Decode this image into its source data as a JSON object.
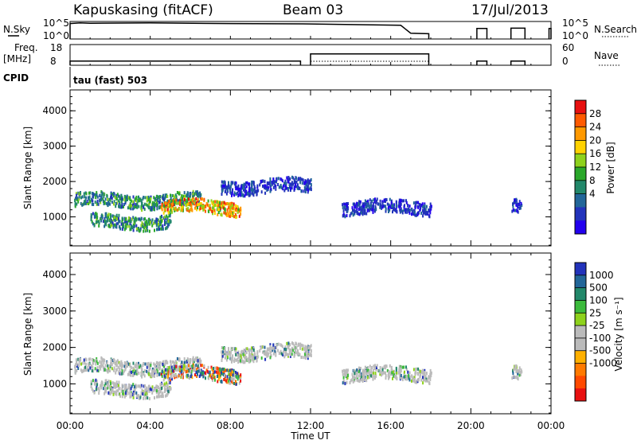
{
  "header": {
    "station": "Kapuskasing (fitACF)",
    "beam": "Beam 03",
    "date": "17/Jul/2013"
  },
  "side_labels": {
    "nsky": "N.Sky",
    "nsearch": "N.Search",
    "freq": "Freq.",
    "freq_unit": "[MHz]",
    "nave": "Nave",
    "cpid": "CPID",
    "cpid_value": "tau (fast) 503"
  },
  "strip_ticks": {
    "noise_left": [
      "10^5",
      "10^0"
    ],
    "noise_right": [
      "10^5",
      "10^0"
    ],
    "freq_left": [
      "18",
      "8"
    ],
    "nave_right": [
      "60",
      "0"
    ]
  },
  "chart_data": [
    {
      "type": "heatmap",
      "title": "",
      "quantity": "Power",
      "colorbar_label": "Power [dB]",
      "colorbar_ticks": [
        "28",
        "24",
        "20",
        "16",
        "12",
        "8",
        "4"
      ],
      "colorbar_colors": [
        "#e81010",
        "#ff5a00",
        "#ff9900",
        "#ffd200",
        "#8ed21c",
        "#2aa82a",
        "#22886a",
        "#226699",
        "#2233bb",
        "#2200ee"
      ],
      "xlabel": "Time UT",
      "ylabel": "Slant Range [km]",
      "x_ticks": [
        "00:00",
        "04:00",
        "08:00",
        "12:00",
        "16:00",
        "20:00",
        "00:00"
      ],
      "y_ticks": [
        "4000",
        "3000",
        "2000",
        "1000"
      ],
      "xlim_hours": [
        0,
        24
      ],
      "ylim_km": [
        180,
        4590
      ],
      "echo_regions": [
        {
          "t_start": 0.2,
          "t_end": 6.5,
          "range_km": 1500,
          "value": "medium"
        },
        {
          "t_start": 4.5,
          "t_end": 8.5,
          "range_km": 1300,
          "value": "high"
        },
        {
          "t_start": 1.0,
          "t_end": 5.0,
          "range_km": 900,
          "value": "medium"
        },
        {
          "t_start": 7.5,
          "t_end": 12.0,
          "range_km": 1900,
          "value": "low"
        },
        {
          "t_start": 13.5,
          "t_end": 18.0,
          "range_km": 1300,
          "value": "low"
        },
        {
          "t_start": 22.0,
          "t_end": 22.5,
          "range_km": 1400,
          "value": "low"
        }
      ]
    },
    {
      "type": "heatmap",
      "title": "",
      "quantity": "Velocity",
      "colorbar_label": "Velocity [m s⁻¹]",
      "colorbar_ticks": [
        "1000",
        "500",
        "100",
        "25",
        "-25",
        "-100",
        "-500",
        "-1000"
      ],
      "colorbar_colors": [
        "#2233bb",
        "#226699",
        "#22886a",
        "#3cbb3c",
        "#8ed21c",
        "#bbbbbb",
        "#bbbbbb",
        "#ffb000",
        "#ff7a00",
        "#ff4a00",
        "#e81010"
      ],
      "xlabel": "Time UT",
      "ylabel": "Slant Range [km]",
      "x_ticks": [
        "00:00",
        "04:00",
        "08:00",
        "12:00",
        "16:00",
        "20:00",
        "00:00"
      ],
      "y_ticks": [
        "4000",
        "3000",
        "2000",
        "1000"
      ],
      "xlim_hours": [
        0,
        24
      ],
      "ylim_km": [
        180,
        4590
      ]
    },
    {
      "type": "line",
      "title": "",
      "series": [
        {
          "points": [
            [
              0,
              0.88
            ],
            [
              0.5,
              0.92
            ],
            [
              1,
              0.9
            ],
            [
              4,
              0.92
            ],
            [
              8,
              0.88
            ],
            [
              12,
              0.86
            ],
            [
              16.5,
              0.78
            ],
            [
              17.0,
              0.33
            ],
            [
              17.9,
              0.3
            ]
          ]
        },
        {
          "points": [
            [
              20.3,
              0.6
            ],
            [
              20.8,
              0.6
            ]
          ]
        },
        {
          "points": [
            [
              22.0,
              0.62
            ],
            [
              22.7,
              0.62
            ]
          ]
        },
        {
          "points": [
            [
              23.9,
              0.6
            ],
            [
              24,
              0.6
            ]
          ]
        }
      ]
    },
    {
      "type": "line",
      "title": "",
      "freq_segments_mhz": [
        [
          0,
          11.5,
          10.0
        ],
        [
          12.0,
          17.9,
          13.5
        ],
        [
          20.3,
          20.8,
          10.0
        ],
        [
          22.0,
          22.7,
          10.0
        ]
      ]
    }
  ]
}
